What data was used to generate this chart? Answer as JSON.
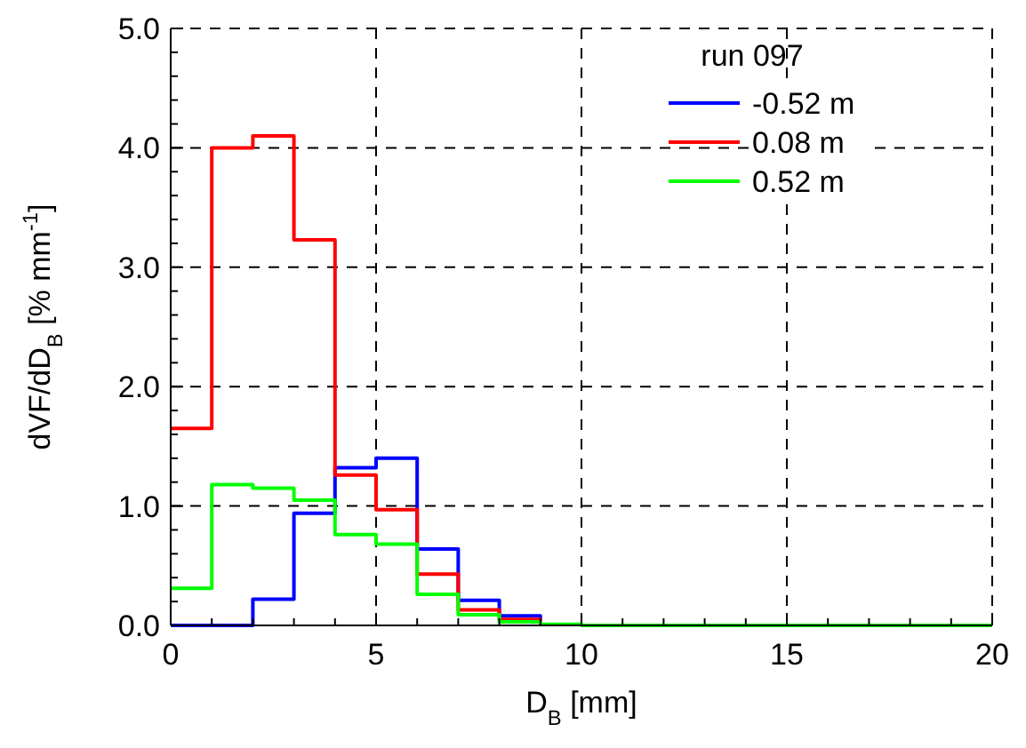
{
  "chart_data": {
    "type": "step",
    "xlabel": "D$_{B}$ [mm]",
    "ylabel": "dVF/dD$_{B}$ [% mm$^{-1}$]",
    "legend_title": "run 097",
    "legend": "top right",
    "grid": true,
    "line_style": "solid",
    "xlim": [
      0,
      20
    ],
    "xticks": [
      0,
      {
        "value": 1,
        "label": null
      },
      {
        "value": 2,
        "label": null
      },
      {
        "value": 3,
        "label": null
      },
      {
        "value": 4,
        "label": null
      },
      5,
      {
        "value": 6,
        "label": null
      },
      {
        "value": 7,
        "label": null
      },
      {
        "value": 8,
        "label": null
      },
      {
        "value": 9,
        "label": null
      },
      10,
      {
        "value": 11,
        "label": null
      },
      {
        "value": 12,
        "label": null
      },
      {
        "value": 13,
        "label": null
      },
      {
        "value": 14,
        "label": null
      },
      15,
      {
        "value": 16,
        "label": null
      },
      {
        "value": 17,
        "label": null
      },
      {
        "value": 18,
        "label": null
      },
      {
        "value": 19,
        "label": null
      },
      20
    ],
    "ylim": [
      0,
      5
    ],
    "yticks": [
      {
        "value": 0,
        "label": "0.0"
      },
      {
        "value": 0.2,
        "label": null
      },
      {
        "value": 0.4,
        "label": null
      },
      {
        "value": 0.6,
        "label": null
      },
      {
        "value": 0.8,
        "label": null
      },
      {
        "value": 1,
        "label": "1.0"
      },
      {
        "value": 1.2,
        "label": null
      },
      {
        "value": 1.4,
        "label": null
      },
      {
        "value": 1.6,
        "label": null
      },
      {
        "value": 1.8,
        "label": null
      },
      {
        "value": 2,
        "label": "2.0"
      },
      {
        "value": 2.2,
        "label": null
      },
      {
        "value": 2.4,
        "label": null
      },
      {
        "value": 2.6,
        "label": null
      },
      {
        "value": 2.8,
        "label": null
      },
      {
        "value": 3,
        "label": "3.0"
      },
      {
        "value": 3.2,
        "label": null
      },
      {
        "value": 3.4,
        "label": null
      },
      {
        "value": 3.6,
        "label": null
      },
      {
        "value": 3.8,
        "label": null
      },
      {
        "value": 4,
        "label": "4.0"
      },
      {
        "value": 4.2,
        "label": null
      },
      {
        "value": 4.4,
        "label": null
      },
      {
        "value": 4.6,
        "label": null
      },
      {
        "value": 4.8,
        "label": null
      },
      {
        "value": 5,
        "label": "5.0"
      }
    ],
    "x": [
      0,
      1,
      2,
      3,
      4,
      5,
      6,
      7,
      8,
      9,
      10,
      11,
      12,
      13,
      14,
      15,
      16,
      17,
      18,
      19,
      20
    ],
    "series": [
      {
        "name": "-0.52 m",
        "color": "#0000ff",
        "values": [
          0,
          0,
          0.22,
          0.94,
          1.32,
          1.4,
          0.64,
          0.21,
          0.08,
          0.02,
          null,
          null,
          null,
          null,
          null,
          null,
          null,
          null,
          null,
          null,
          null
        ]
      },
      {
        "name": "0.08 m",
        "color": "#ff0000",
        "values": [
          1.65,
          4.0,
          4.1,
          3.23,
          1.26,
          0.97,
          0.43,
          0.13,
          0.05,
          0.02,
          null,
          null,
          null,
          null,
          null,
          null,
          null,
          null,
          null,
          null,
          null
        ]
      },
      {
        "name": "0.52 m",
        "color": "#00ff00",
        "values": [
          0.31,
          1.18,
          1.15,
          1.05,
          0.76,
          0.68,
          0.26,
          0.09,
          0.03,
          0.01,
          0,
          0,
          0,
          0,
          0,
          0,
          0,
          0,
          0,
          0,
          0
        ]
      }
    ]
  }
}
